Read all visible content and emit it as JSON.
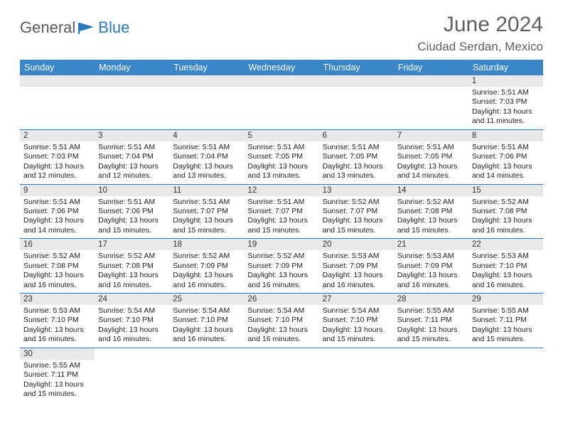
{
  "logo": {
    "part1": "General",
    "part2": "Blue"
  },
  "title": "June 2024",
  "location": "Ciudad Serdan, Mexico",
  "colors": {
    "header_bg": "#3a87c8",
    "header_text": "#ffffff",
    "border": "#2b78bd",
    "daynum_bg": "#e9e9e9",
    "logo_gray": "#5b5b5b",
    "logo_blue": "#2b78bd",
    "title_color": "#606060"
  },
  "daysOfWeek": [
    "Sunday",
    "Monday",
    "Tuesday",
    "Wednesday",
    "Thursday",
    "Friday",
    "Saturday"
  ],
  "startOffset": 6,
  "days": [
    {
      "n": 1,
      "sunrise": "5:51 AM",
      "sunset": "7:03 PM",
      "daylight": "13 hours and 11 minutes."
    },
    {
      "n": 2,
      "sunrise": "5:51 AM",
      "sunset": "7:03 PM",
      "daylight": "13 hours and 12 minutes."
    },
    {
      "n": 3,
      "sunrise": "5:51 AM",
      "sunset": "7:04 PM",
      "daylight": "13 hours and 12 minutes."
    },
    {
      "n": 4,
      "sunrise": "5:51 AM",
      "sunset": "7:04 PM",
      "daylight": "13 hours and 13 minutes."
    },
    {
      "n": 5,
      "sunrise": "5:51 AM",
      "sunset": "7:05 PM",
      "daylight": "13 hours and 13 minutes."
    },
    {
      "n": 6,
      "sunrise": "5:51 AM",
      "sunset": "7:05 PM",
      "daylight": "13 hours and 13 minutes."
    },
    {
      "n": 7,
      "sunrise": "5:51 AM",
      "sunset": "7:05 PM",
      "daylight": "13 hours and 14 minutes."
    },
    {
      "n": 8,
      "sunrise": "5:51 AM",
      "sunset": "7:06 PM",
      "daylight": "13 hours and 14 minutes."
    },
    {
      "n": 9,
      "sunrise": "5:51 AM",
      "sunset": "7:06 PM",
      "daylight": "13 hours and 14 minutes."
    },
    {
      "n": 10,
      "sunrise": "5:51 AM",
      "sunset": "7:06 PM",
      "daylight": "13 hours and 15 minutes."
    },
    {
      "n": 11,
      "sunrise": "5:51 AM",
      "sunset": "7:07 PM",
      "daylight": "13 hours and 15 minutes."
    },
    {
      "n": 12,
      "sunrise": "5:51 AM",
      "sunset": "7:07 PM",
      "daylight": "13 hours and 15 minutes."
    },
    {
      "n": 13,
      "sunrise": "5:52 AM",
      "sunset": "7:07 PM",
      "daylight": "13 hours and 15 minutes."
    },
    {
      "n": 14,
      "sunrise": "5:52 AM",
      "sunset": "7:08 PM",
      "daylight": "13 hours and 15 minutes."
    },
    {
      "n": 15,
      "sunrise": "5:52 AM",
      "sunset": "7:08 PM",
      "daylight": "13 hours and 16 minutes."
    },
    {
      "n": 16,
      "sunrise": "5:52 AM",
      "sunset": "7:08 PM",
      "daylight": "13 hours and 16 minutes."
    },
    {
      "n": 17,
      "sunrise": "5:52 AM",
      "sunset": "7:08 PM",
      "daylight": "13 hours and 16 minutes."
    },
    {
      "n": 18,
      "sunrise": "5:52 AM",
      "sunset": "7:09 PM",
      "daylight": "13 hours and 16 minutes."
    },
    {
      "n": 19,
      "sunrise": "5:52 AM",
      "sunset": "7:09 PM",
      "daylight": "13 hours and 16 minutes."
    },
    {
      "n": 20,
      "sunrise": "5:53 AM",
      "sunset": "7:09 PM",
      "daylight": "13 hours and 16 minutes."
    },
    {
      "n": 21,
      "sunrise": "5:53 AM",
      "sunset": "7:09 PM",
      "daylight": "13 hours and 16 minutes."
    },
    {
      "n": 22,
      "sunrise": "5:53 AM",
      "sunset": "7:10 PM",
      "daylight": "13 hours and 16 minutes."
    },
    {
      "n": 23,
      "sunrise": "5:53 AM",
      "sunset": "7:10 PM",
      "daylight": "13 hours and 16 minutes."
    },
    {
      "n": 24,
      "sunrise": "5:54 AM",
      "sunset": "7:10 PM",
      "daylight": "13 hours and 16 minutes."
    },
    {
      "n": 25,
      "sunrise": "5:54 AM",
      "sunset": "7:10 PM",
      "daylight": "13 hours and 16 minutes."
    },
    {
      "n": 26,
      "sunrise": "5:54 AM",
      "sunset": "7:10 PM",
      "daylight": "13 hours and 16 minutes."
    },
    {
      "n": 27,
      "sunrise": "5:54 AM",
      "sunset": "7:10 PM",
      "daylight": "13 hours and 15 minutes."
    },
    {
      "n": 28,
      "sunrise": "5:55 AM",
      "sunset": "7:11 PM",
      "daylight": "13 hours and 15 minutes."
    },
    {
      "n": 29,
      "sunrise": "5:55 AM",
      "sunset": "7:11 PM",
      "daylight": "13 hours and 15 minutes."
    },
    {
      "n": 30,
      "sunrise": "5:55 AM",
      "sunset": "7:11 PM",
      "daylight": "13 hours and 15 minutes."
    }
  ],
  "labels": {
    "sunrise": "Sunrise:",
    "sunset": "Sunset:",
    "daylight": "Daylight:"
  }
}
